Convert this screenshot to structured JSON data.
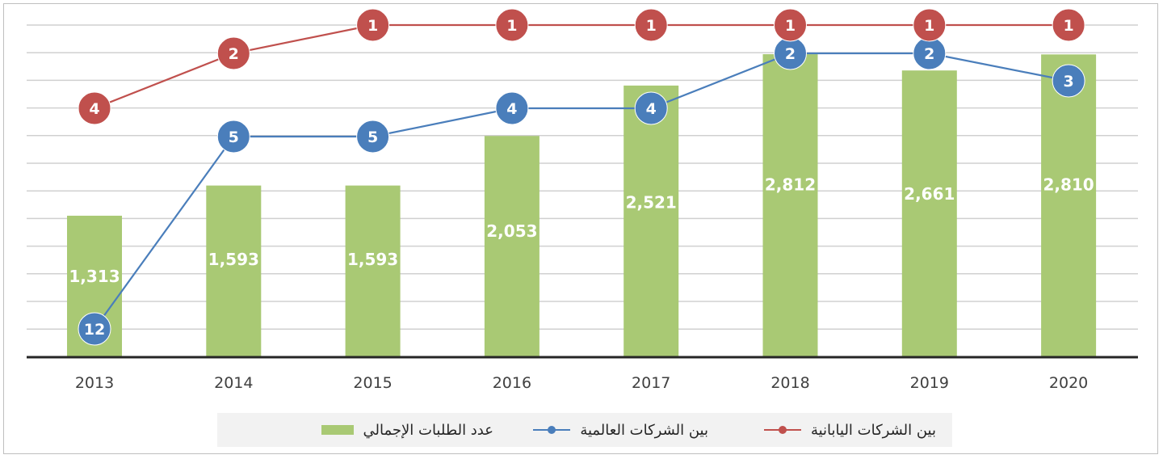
{
  "chart_data": {
    "type": "bar",
    "categories": [
      "2013",
      "2014",
      "2015",
      "2016",
      "2017",
      "2018",
      "2019",
      "2020"
    ],
    "series": [
      {
        "name": "عدد الطلبات الإجمالي",
        "type": "bar",
        "values": [
          1313,
          1593,
          1593,
          2053,
          2521,
          2812,
          2661,
          2810
        ],
        "labels": [
          "1,313",
          "1,593",
          "1,593",
          "2,053",
          "2,521",
          "2,812",
          "2,661",
          "2,810"
        ],
        "color": "#a9c974"
      },
      {
        "name": "بين الشركات العالمية",
        "type": "line-rank",
        "values": [
          12,
          5,
          5,
          4,
          4,
          2,
          2,
          3
        ],
        "color": "#4a7ebb"
      },
      {
        "name": "بين الشركات اليابانية",
        "type": "line-rank",
        "values": [
          4,
          2,
          1,
          1,
          1,
          1,
          1,
          1
        ],
        "color": "#c0504d"
      }
    ],
    "y_rank_range": [
      1,
      12
    ],
    "grid": true,
    "legend_position": "bottom"
  }
}
